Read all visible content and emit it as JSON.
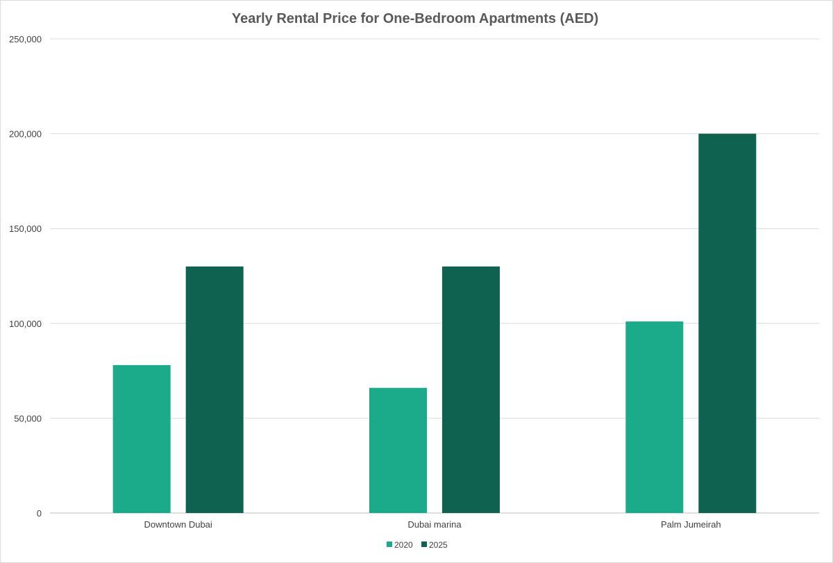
{
  "chart_data": {
    "type": "bar",
    "title": "Yearly Rental Price for One-Bedroom Apartments (AED)",
    "categories": [
      "Downtown Dubai",
      "Dubai marina",
      "Palm Jumeirah"
    ],
    "series": [
      {
        "name": "2020",
        "values": [
          78000,
          66000,
          101000
        ],
        "color": "#1cab8a"
      },
      {
        "name": "2025",
        "values": [
          130000,
          130000,
          200000
        ],
        "color": "#0f6150"
      }
    ],
    "ylim": [
      0,
      250000
    ],
    "yticks": [
      0,
      50000,
      100000,
      150000,
      200000,
      250000
    ],
    "ytick_labels": [
      "0",
      "50,000",
      "100,000",
      "150,000",
      "200,000",
      "250,000"
    ],
    "grid": true,
    "legend": "bottom",
    "xlabel": "",
    "ylabel": ""
  }
}
